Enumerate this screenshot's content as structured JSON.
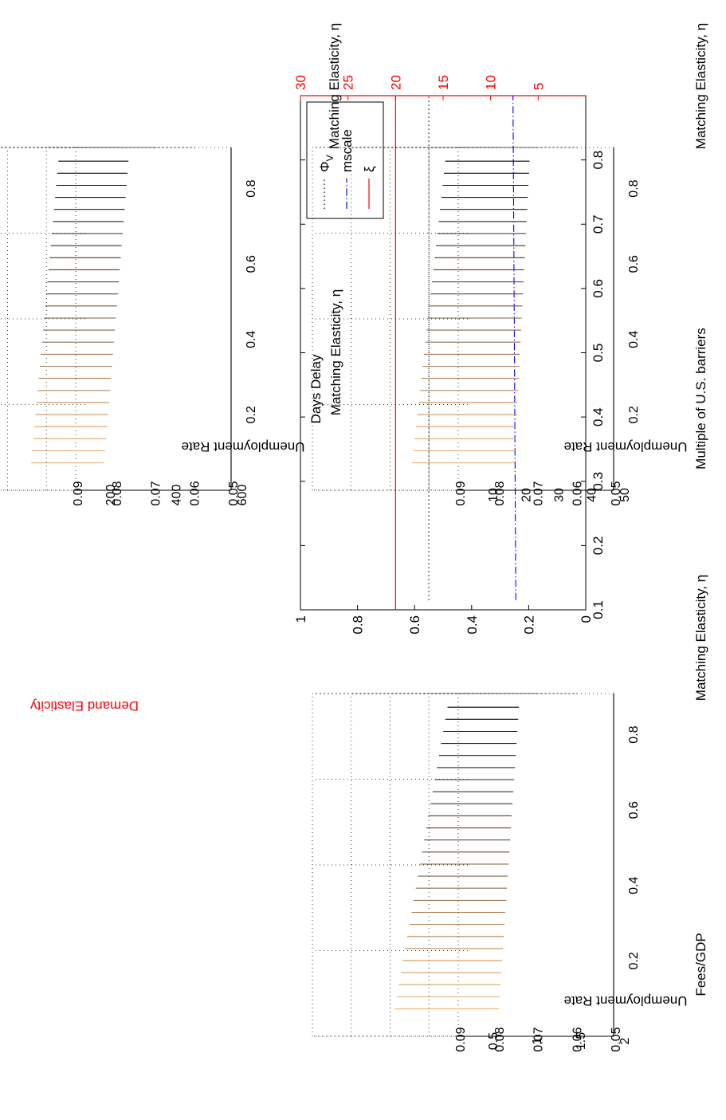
{
  "colors": {
    "ink": "#000000",
    "accent_red": "#ff0000",
    "mscale_blue": "#0000ff",
    "warm": "#f2b27a"
  },
  "chart_data": [
    {
      "id": "line-panel",
      "type": "line",
      "xlabel": "Matching Elasticity, η",
      "ylabel_right": "Demand Elasticity",
      "xlim": [
        0.1,
        0.9
      ],
      "ylim_left": [
        0,
        1
      ],
      "ylim_right": [
        0,
        30
      ],
      "x_ticks": [
        "0.1",
        "0.2",
        "0.3",
        "0.4",
        "0.5",
        "0.6",
        "0.7",
        "0.8"
      ],
      "x_tick_values": [
        0.1,
        0.2,
        0.3,
        0.4,
        0.5,
        0.6,
        0.7,
        0.8
      ],
      "y_ticks_left": [
        "0",
        "0.2",
        "0.4",
        "0.6",
        "0.8",
        "1"
      ],
      "y_tick_values_left": [
        0,
        0.2,
        0.4,
        0.6,
        0.8,
        1
      ],
      "y_ticks_right": [
        "5",
        "10",
        "15",
        "20",
        "25",
        "30"
      ],
      "y_tick_values_right": [
        5,
        10,
        15,
        20,
        25,
        30
      ],
      "legend_position": "top-right",
      "series": [
        {
          "name": "Φ",
          "subscript": "V",
          "style": "dotted",
          "color": "#000000",
          "axis": "left",
          "x": [
            0.115,
            0.9
          ],
          "y": [
            0.55,
            0.55
          ]
        },
        {
          "name": "mscale",
          "style": "dashdot",
          "color": "#0000ff",
          "axis": "left",
          "x": [
            0.115,
            0.9
          ],
          "y": [
            0.245,
            0.255
          ]
        },
        {
          "name": "ξ",
          "style": "solid",
          "color": "#ff0000",
          "axis": "right",
          "x": [
            0.1,
            0.9
          ],
          "y": [
            20,
            20
          ]
        }
      ]
    },
    {
      "id": "surface-days",
      "type": "surface",
      "zlabel": "Unemployment Rate",
      "xlabel": "Days Delay",
      "ylabel": "Matching Elasticity, η",
      "z_ticks": [
        "0.05",
        "0.06",
        "0.07",
        "0.08",
        "0.09"
      ],
      "x_ticks": [
        "600",
        "400",
        "200"
      ],
      "y_ticks": [
        "0.2",
        "0.4",
        "0.6",
        "0.8"
      ],
      "z_at_max_x": [
        0.083,
        0.076
      ],
      "z_at_min_x": [
        0.066,
        0.058
      ]
    },
    {
      "id": "surface-fees",
      "type": "surface",
      "zlabel": "Unemployment Rate",
      "xlabel": "Fees/GDP",
      "ylabel": "Matching Elasticity, η",
      "z_ticks": [
        "0.05",
        "0.06",
        "0.07",
        "0.08",
        "0.09"
      ],
      "x_ticks": [
        "2",
        "1.5",
        "1",
        "0.5"
      ],
      "y_ticks": [
        "0.2",
        "0.4",
        "0.6",
        "0.8"
      ],
      "z_at_max_x": [
        0.079,
        0.074
      ],
      "z_at_min_x": [
        0.072,
        0.056
      ]
    },
    {
      "id": "surface-multiple",
      "type": "surface",
      "zlabel": "Unemployment Rate",
      "xlabel": "Multiple of U.S. barriers",
      "ylabel": "Matching Elasticity, η",
      "z_ticks": [
        "0.05",
        "0.06",
        "0.07",
        "0.08",
        "0.09"
      ],
      "x_ticks": [
        "50",
        "40",
        "30",
        "20",
        "10"
      ],
      "y_ticks": [
        "0.2",
        "0.4",
        "0.6",
        "0.8"
      ],
      "z_at_max_x": [
        0.075,
        0.071
      ],
      "z_at_min_x": [
        0.067,
        0.057
      ]
    }
  ]
}
